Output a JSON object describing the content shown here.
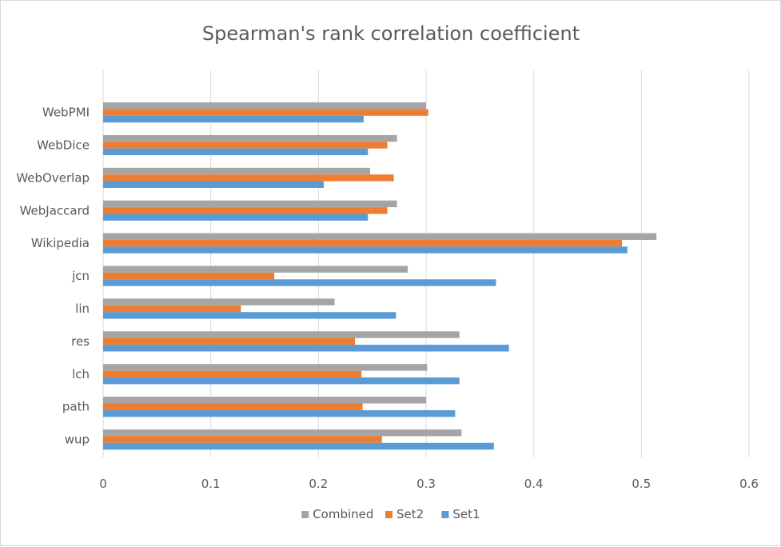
{
  "chart_data": {
    "type": "bar",
    "orientation": "horizontal",
    "title": "Spearman's rank correlation coefficient",
    "categories": [
      "WebPMI",
      "WebDice",
      "WebOverlap",
      "WebJaccard",
      "Wikipedia",
      "jcn",
      "lin",
      "res",
      "lch",
      "path",
      "wup"
    ],
    "series": [
      {
        "name": "Combined",
        "color": "#A5A5A5",
        "values": [
          0.3,
          0.273,
          0.248,
          0.273,
          0.514,
          0.283,
          0.215,
          0.331,
          0.301,
          0.3,
          0.333
        ]
      },
      {
        "name": "Set2",
        "color": "#ED7D31",
        "values": [
          0.302,
          0.264,
          0.27,
          0.264,
          0.482,
          0.159,
          0.128,
          0.234,
          0.24,
          0.241,
          0.259
        ]
      },
      {
        "name": "Set1",
        "color": "#5B9BD5",
        "values": [
          0.242,
          0.246,
          0.205,
          0.246,
          0.487,
          0.365,
          0.272,
          0.377,
          0.331,
          0.327,
          0.363
        ]
      }
    ],
    "xlim": [
      0,
      0.6
    ],
    "x_ticks": [
      "0",
      "0.1",
      "0.2",
      "0.3",
      "0.4",
      "0.5",
      "0.6"
    ],
    "grid": true,
    "legend_position": "bottom",
    "legend_order": [
      "Combined",
      "Set2",
      "Set1"
    ]
  }
}
